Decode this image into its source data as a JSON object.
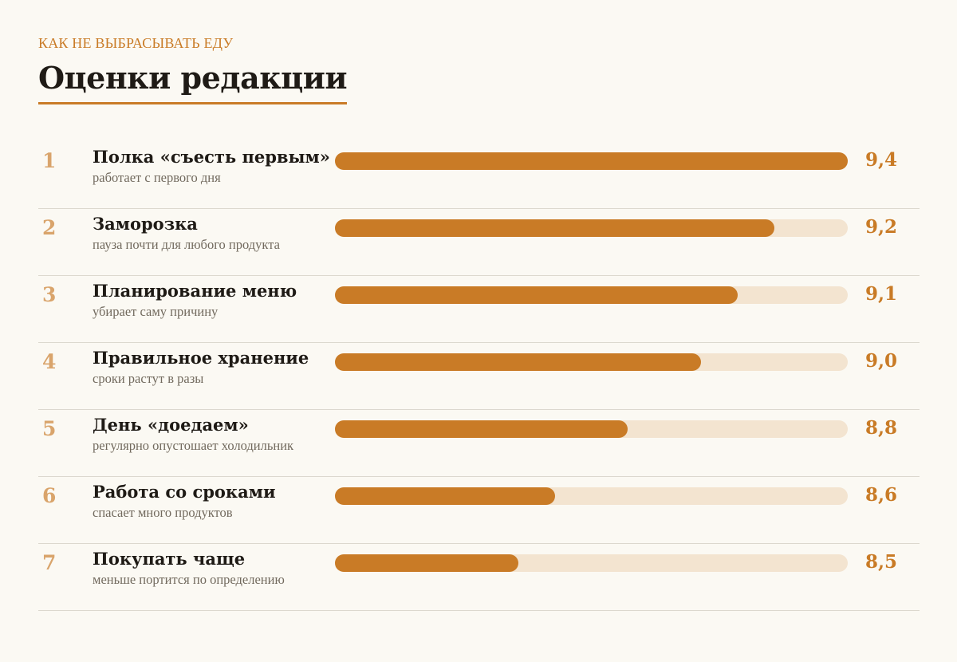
{
  "header": {
    "kicker": "КАК НЕ ВЫБРАСЫВАТЬ ЕДУ",
    "title": "Оценки редакции"
  },
  "colors": {
    "accent": "#c97b26",
    "track": "#f3e4d0",
    "rank": "#d9a46b",
    "background": "#fbf9f3"
  },
  "chart_data": {
    "type": "bar",
    "orientation": "horizontal",
    "title": "Оценки редакции",
    "xlim": [
      8,
      9.4
    ],
    "categories": [
      "Полка «съесть первым»",
      "Заморозка",
      "Планирование меню",
      "Правильное хранение",
      "День «доедаем»",
      "Работа со сроками",
      "Покупать чаще"
    ],
    "values": [
      9.4,
      9.2,
      9.1,
      9.0,
      8.8,
      8.6,
      8.5
    ],
    "items": [
      {
        "rank": "1",
        "label": "Полка «съесть первым»",
        "sub": "работает с первого дня",
        "score": "9,4",
        "value": 9.4
      },
      {
        "rank": "2",
        "label": "Заморозка",
        "sub": "пауза почти для любого продукта",
        "score": "9,2",
        "value": 9.2
      },
      {
        "rank": "3",
        "label": "Планирование меню",
        "sub": "убирает саму причину",
        "score": "9,1",
        "value": 9.1
      },
      {
        "rank": "4",
        "label": "Правильное хранение",
        "sub": "сроки растут в разы",
        "score": "9,0",
        "value": 9.0
      },
      {
        "rank": "5",
        "label": "День «доедаем»",
        "sub": "регулярно опустошает холодильник",
        "score": "8,8",
        "value": 8.8
      },
      {
        "rank": "6",
        "label": "Работа со сроками",
        "sub": "спасает много продуктов",
        "score": "8,6",
        "value": 8.6
      },
      {
        "rank": "7",
        "label": "Покупать чаще",
        "sub": "меньше портится по определению",
        "score": "8,5",
        "value": 8.5
      }
    ]
  }
}
